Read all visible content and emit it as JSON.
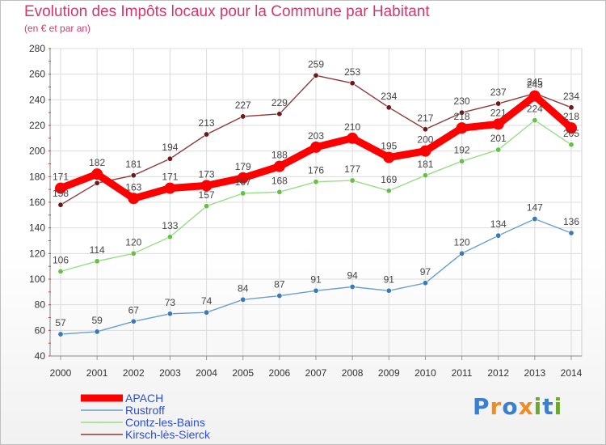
{
  "title": "Evolution des Impôts locaux pour la Commune par Habitant",
  "subtitle": "(en € et par an)",
  "logo": {
    "text": "Proxiti",
    "letters": [
      "P",
      "r",
      "o",
      "x",
      "i",
      "t",
      "i"
    ],
    "colors": [
      "#3a7fd0",
      "#f28c1e",
      "#3a7fd0",
      "#f28c1e",
      "#6aaa2a",
      "#3a7fd0",
      "#6aaa2a"
    ]
  },
  "chart_data": {
    "type": "line",
    "title": "Evolution des Impôts locaux pour la Commune par Habitant",
    "subtitle": "(en € et par an)",
    "xlabel": "",
    "ylabel": "",
    "x": [
      "2000",
      "2001",
      "2002",
      "2003",
      "2004",
      "2005",
      "2006",
      "2007",
      "2008",
      "2009",
      "2010",
      "2011",
      "2012",
      "2013",
      "2014"
    ],
    "ylim": [
      40,
      280
    ],
    "yticks": [
      40,
      60,
      80,
      100,
      120,
      140,
      160,
      180,
      200,
      220,
      240,
      260,
      280
    ],
    "grid": true,
    "legend_position": "bottom-left",
    "series": [
      {
        "name": "Kirsch-lès-Sierck",
        "color": "#8b3a3a",
        "marker_color": "#6b1a1a",
        "values": [
          158,
          175,
          181,
          194,
          213,
          227,
          229,
          259,
          253,
          234,
          217,
          230,
          237,
          245,
          234
        ],
        "labels": [
          "158",
          "175",
          "181",
          "194",
          "213",
          "227",
          "229",
          "259",
          "253",
          "234",
          "217",
          "230",
          "237",
          "245",
          "234"
        ],
        "show_label": [
          true,
          false,
          true,
          true,
          true,
          true,
          true,
          true,
          true,
          true,
          true,
          true,
          true,
          true,
          true
        ]
      },
      {
        "name": "Contz-les-Bains",
        "color": "#99dd88",
        "marker_color": "#66c044",
        "values": [
          106,
          114,
          120,
          133,
          157,
          167,
          168,
          176,
          177,
          169,
          181,
          192,
          201,
          224,
          205
        ],
        "labels": [
          "106",
          "114",
          "120",
          "133",
          "157",
          "167",
          "168",
          "176",
          "177",
          "169",
          "181",
          "192",
          "201",
          "224",
          "205"
        ],
        "show_label": [
          true,
          true,
          true,
          true,
          true,
          true,
          true,
          true,
          true,
          true,
          true,
          true,
          true,
          true,
          true
        ]
      },
      {
        "name": "Rustroff",
        "color": "#6a9fcc",
        "marker_color": "#3a7ab8",
        "values": [
          57,
          59,
          67,
          73,
          74,
          84,
          87,
          91,
          94,
          91,
          97,
          120,
          134,
          147,
          136
        ],
        "labels": [
          "57",
          "59",
          "67",
          "73",
          "74",
          "84",
          "87",
          "91",
          "94",
          "91",
          "97",
          "120",
          "134",
          "147",
          "136"
        ],
        "show_label": [
          true,
          true,
          true,
          true,
          true,
          true,
          true,
          true,
          true,
          true,
          true,
          true,
          true,
          true,
          true
        ]
      },
      {
        "name": "APACH",
        "color": "#ff0000",
        "marker_color": "#ff0000",
        "values": [
          171,
          182,
          163,
          171,
          173,
          179,
          188,
          203,
          210,
          195,
          200,
          218,
          221,
          243,
          218
        ],
        "labels": [
          "171",
          "182",
          "163",
          "171",
          "173",
          "179",
          "188",
          "203",
          "210",
          "195",
          "200",
          "218",
          "221",
          "243",
          "218"
        ],
        "show_label": [
          true,
          true,
          true,
          true,
          true,
          true,
          true,
          true,
          true,
          true,
          true,
          true,
          true,
          true,
          true
        ]
      }
    ],
    "legend": [
      "APACH",
      "Rustroff",
      "Contz-les-Bains",
      "Kirsch-lès-Sierck"
    ]
  }
}
